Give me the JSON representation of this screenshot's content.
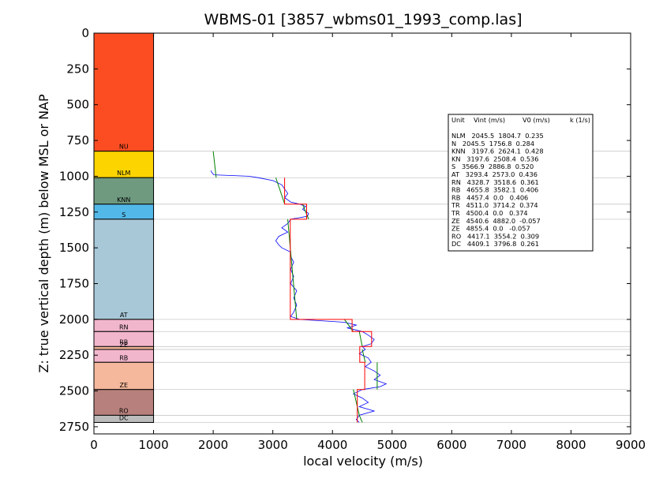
{
  "chart_data": {
    "type": "line",
    "title": "WBMS-01 [3857_wbms01_1993_comp.las]",
    "xlabel": "local velocity (m/s)",
    "ylabel": "Z: true vertical depth (m) below MSL or NAP",
    "xlim": [
      0,
      9000
    ],
    "ylim": [
      2800,
      0
    ],
    "x_ticks": [
      "0",
      "1000",
      "2000",
      "3000",
      "4000",
      "5000",
      "6000",
      "7000",
      "8000",
      "9000"
    ],
    "y_ticks": [
      "0",
      "250",
      "500",
      "750",
      "1000",
      "1250",
      "1500",
      "1750",
      "2000",
      "2250",
      "2500",
      "2750"
    ],
    "x_tick_values": [
      0,
      1000,
      2000,
      3000,
      4000,
      5000,
      6000,
      7000,
      8000,
      9000
    ],
    "y_tick_values": [
      0,
      250,
      500,
      750,
      1000,
      1250,
      1500,
      1750,
      2000,
      2250,
      2500,
      2750
    ],
    "units": [
      {
        "name": "NU",
        "top": 0,
        "bottom": 825,
        "color": "#fc4d22"
      },
      {
        "name": "NLM",
        "top": 825,
        "bottom": 1010,
        "color": "#fcd400"
      },
      {
        "name": "KNN",
        "top": 1010,
        "bottom": 1195,
        "color": "#6f9a80"
      },
      {
        "name": "S",
        "top": 1195,
        "bottom": 1300,
        "color": "#52b8e8"
      },
      {
        "name": "AT",
        "top": 1300,
        "bottom": 2000,
        "color": "#a8c8d8"
      },
      {
        "name": "RN",
        "top": 2000,
        "bottom": 2085,
        "color": "#f2b6cc"
      },
      {
        "name": "RB",
        "top": 2085,
        "bottom": 2190,
        "color": "#f2b6cc"
      },
      {
        "name": "ZE",
        "top": 2190,
        "bottom": 2210,
        "color": "#f5b89c"
      },
      {
        "name": "RB",
        "top": 2210,
        "bottom": 2300,
        "color": "#f2b6cc"
      },
      {
        "name": "ZE",
        "top": 2300,
        "bottom": 2490,
        "color": "#f5b89c"
      },
      {
        "name": "RO",
        "top": 2490,
        "bottom": 2670,
        "color": "#b8807c"
      },
      {
        "name": "DC",
        "top": 2670,
        "bottom": 2720,
        "color": "#bcbcbc"
      }
    ],
    "boundary_depths": [
      825,
      1010,
      1195,
      1300,
      2000,
      2085,
      2190,
      2210,
      2300,
      2490,
      2670,
      2720
    ],
    "log_profile": [
      [
        960,
        1960
      ],
      [
        975,
        1980
      ],
      [
        990,
        2010
      ],
      [
        1000,
        2600
      ],
      [
        1010,
        2750
      ],
      [
        1030,
        3000
      ],
      [
        1060,
        3150
      ],
      [
        1090,
        3200
      ],
      [
        1120,
        3250
      ],
      [
        1150,
        3200
      ],
      [
        1180,
        3300
      ],
      [
        1195,
        3450
      ],
      [
        1210,
        3550
      ],
      [
        1230,
        3500
      ],
      [
        1260,
        3600
      ],
      [
        1280,
        3580
      ],
      [
        1300,
        3300
      ],
      [
        1330,
        3250
      ],
      [
        1360,
        3150
      ],
      [
        1390,
        3250
      ],
      [
        1420,
        3100
      ],
      [
        1450,
        3050
      ],
      [
        1480,
        3100
      ],
      [
        1500,
        3150
      ],
      [
        1530,
        3300
      ],
      [
        1560,
        3300
      ],
      [
        1600,
        3350
      ],
      [
        1650,
        3300
      ],
      [
        1700,
        3350
      ],
      [
        1750,
        3300
      ],
      [
        1800,
        3400
      ],
      [
        1850,
        3350
      ],
      [
        1900,
        3400
      ],
      [
        1950,
        3350
      ],
      [
        1980,
        3300
      ],
      [
        2000,
        3450
      ],
      [
        2020,
        4200
      ],
      [
        2040,
        4400
      ],
      [
        2060,
        4250
      ],
      [
        2085,
        4500
      ],
      [
        2110,
        4600
      ],
      [
        2140,
        4700
      ],
      [
        2170,
        4650
      ],
      [
        2190,
        4500
      ],
      [
        2210,
        4550
      ],
      [
        2240,
        4450
      ],
      [
        2270,
        4600
      ],
      [
        2300,
        4650
      ],
      [
        2330,
        4550
      ],
      [
        2360,
        4700
      ],
      [
        2390,
        4800
      ],
      [
        2420,
        4700
      ],
      [
        2450,
        4900
      ],
      [
        2470,
        4800
      ],
      [
        2490,
        4500
      ],
      [
        2520,
        4350
      ],
      [
        2550,
        4500
      ],
      [
        2580,
        4600
      ],
      [
        2610,
        4450
      ],
      [
        2640,
        4700
      ],
      [
        2670,
        4450
      ],
      [
        2700,
        4400
      ],
      [
        2720,
        4450
      ]
    ],
    "interval_velocity": [
      [
        1010,
        3197.6
      ],
      [
        1195,
        3197.6
      ],
      [
        1195,
        3566.9
      ],
      [
        1300,
        3566.9
      ],
      [
        1300,
        3293.4
      ],
      [
        2000,
        3293.4
      ],
      [
        2000,
        4328.7
      ],
      [
        2085,
        4328.7
      ],
      [
        2085,
        4655.8
      ],
      [
        2190,
        4655.8
      ],
      [
        2190,
        4457.4
      ],
      [
        2300,
        4457.4
      ],
      [
        2300,
        4540.6
      ],
      [
        2490,
        4540.6
      ],
      [
        2490,
        4417.1
      ],
      [
        2720,
        4417.1
      ]
    ],
    "trend_segments": [
      [
        [
          825,
          2000
        ],
        [
          1010,
          2050
        ]
      ],
      [
        [
          1010,
          3050
        ],
        [
          1195,
          3200
        ]
      ],
      [
        [
          1195,
          3500
        ],
        [
          1300,
          3600
        ]
      ],
      [
        [
          1300,
          3250
        ],
        [
          2000,
          3400
        ]
      ],
      [
        [
          2000,
          4200
        ],
        [
          2085,
          4350
        ]
      ],
      [
        [
          2085,
          4450
        ],
        [
          2190,
          4500
        ]
      ],
      [
        [
          2210,
          4500
        ],
        [
          2300,
          4550
        ]
      ],
      [
        [
          2300,
          4750
        ],
        [
          2490,
          4750
        ]
      ],
      [
        [
          2490,
          4350
        ],
        [
          2670,
          4450
        ]
      ],
      [
        [
          2670,
          4450
        ],
        [
          2720,
          4500
        ]
      ]
    ],
    "legend": {
      "placement": "right",
      "header": [
        "Unit",
        "Vint (m/s)",
        "V0 (m/s)",
        "k (1/s)"
      ],
      "rows": [
        "NLM   2045.5  1804.7  0.235",
        "N   2045.5  1756.8  0.284",
        "KNN   3197.6  2624.1  0.428",
        "KN   3197.6  2508.4  0.536",
        "S   3566.9  2886.8  0.520",
        "AT   3293.4  2573.0  0.436",
        "RN   4328.7  3518.6  0.361",
        "RB   4655.8  3582.1  0.406",
        "RB   4457.4  0.0   0.406",
        "TR   4511.0  3714.2  0.374",
        "TR   4500.4  0.0   0.374",
        "ZE   4540.6  4882.0  -0.057",
        "ZE   4855.4  0.0   -0.057",
        "RO   4417.1  3554.2  0.309",
        "DC   4409.1  3796.8  0.261"
      ]
    },
    "colors": {
      "log": "#0000ff",
      "interval": "#ff0000",
      "trend": "#008000",
      "boundary_line": "#c8c8c8"
    }
  }
}
